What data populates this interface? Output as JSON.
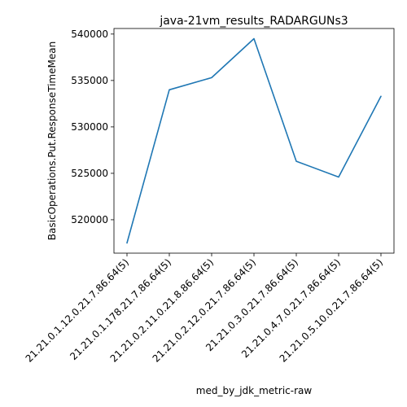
{
  "chart_data": {
    "type": "line",
    "title": "java-21vm_results_RADARGUNs3",
    "xlabel": "med_by_jdk_metric-raw",
    "ylabel": "BasicOperations.Put.ResponseTimeMean",
    "categories": [
      "21.21.0.1.12.0.21.7.86.64(5)",
      "21.21.0.1.178.21.7.86.64(5)",
      "21.21.0.2.11.0.21.8.86.64(5)",
      "21.21.0.2.12.0.21.7.86.64(5)",
      "21.21.0.3.0.21.7.86.64(5)",
      "21.21.0.4.7.0.21.7.86.64(5)",
      "21.21.0.5.10.0.21.7.86.64(5)"
    ],
    "series": [
      {
        "values": [
          517500,
          534000,
          535300,
          539500,
          526300,
          524600,
          533300
        ]
      }
    ],
    "ylim": [
      516400,
      540600
    ],
    "yticks": [
      520000,
      525000,
      530000,
      535000,
      540000
    ],
    "grid": false,
    "legend": "none",
    "colors": {
      "line": "#1f77b4",
      "axis": "#000000"
    }
  }
}
